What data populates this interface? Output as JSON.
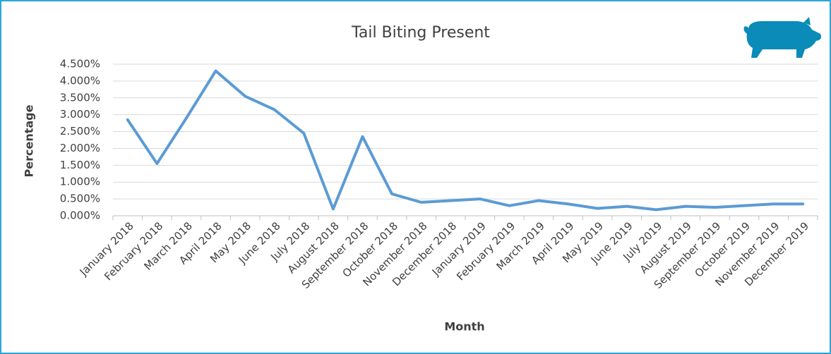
{
  "chart_data": {
    "type": "line",
    "title": "Tail Biting Present",
    "x_label": "Month",
    "y_label": "Percentage",
    "categories": [
      "January 2018",
      "February 2018",
      "March 2018",
      "April 2018",
      "May 2018",
      "June 2018",
      "July 2018",
      "August 2018",
      "September 2018",
      "October 2018",
      "November 2018",
      "December 2018",
      "January 2019",
      "February 2019",
      "March 2019",
      "April 2019",
      "May 2019",
      "June 2019",
      "July 2019",
      "August 2019",
      "September 2019",
      "October 2019",
      "November 2019",
      "December 2019"
    ],
    "series": [
      {
        "name": "Tail Biting Present",
        "color": "#5b9bd5",
        "values": [
          2.85,
          1.55,
          2.9,
          4.3,
          3.55,
          3.15,
          2.45,
          0.2,
          2.35,
          0.65,
          0.4,
          0.45,
          0.5,
          0.3,
          0.45,
          0.35,
          0.22,
          0.28,
          0.18,
          0.28,
          0.25,
          0.3,
          0.35,
          0.35
        ]
      }
    ],
    "ylim": [
      0,
      4.5
    ],
    "yticks": [
      {
        "value": 0,
        "label": "0.000%"
      },
      {
        "value": 0.5,
        "label": "0.500%"
      },
      {
        "value": 1,
        "label": "1.000%"
      },
      {
        "value": 1.5,
        "label": "1.500%"
      },
      {
        "value": 2,
        "label": "2.000%"
      },
      {
        "value": 2.5,
        "label": "2.500%"
      },
      {
        "value": 3,
        "label": "3.000%"
      },
      {
        "value": 3.5,
        "label": "3.500%"
      },
      {
        "value": 4,
        "label": "4.000%"
      },
      {
        "value": 4.5,
        "label": "4.500%"
      }
    ],
    "grid": true
  }
}
